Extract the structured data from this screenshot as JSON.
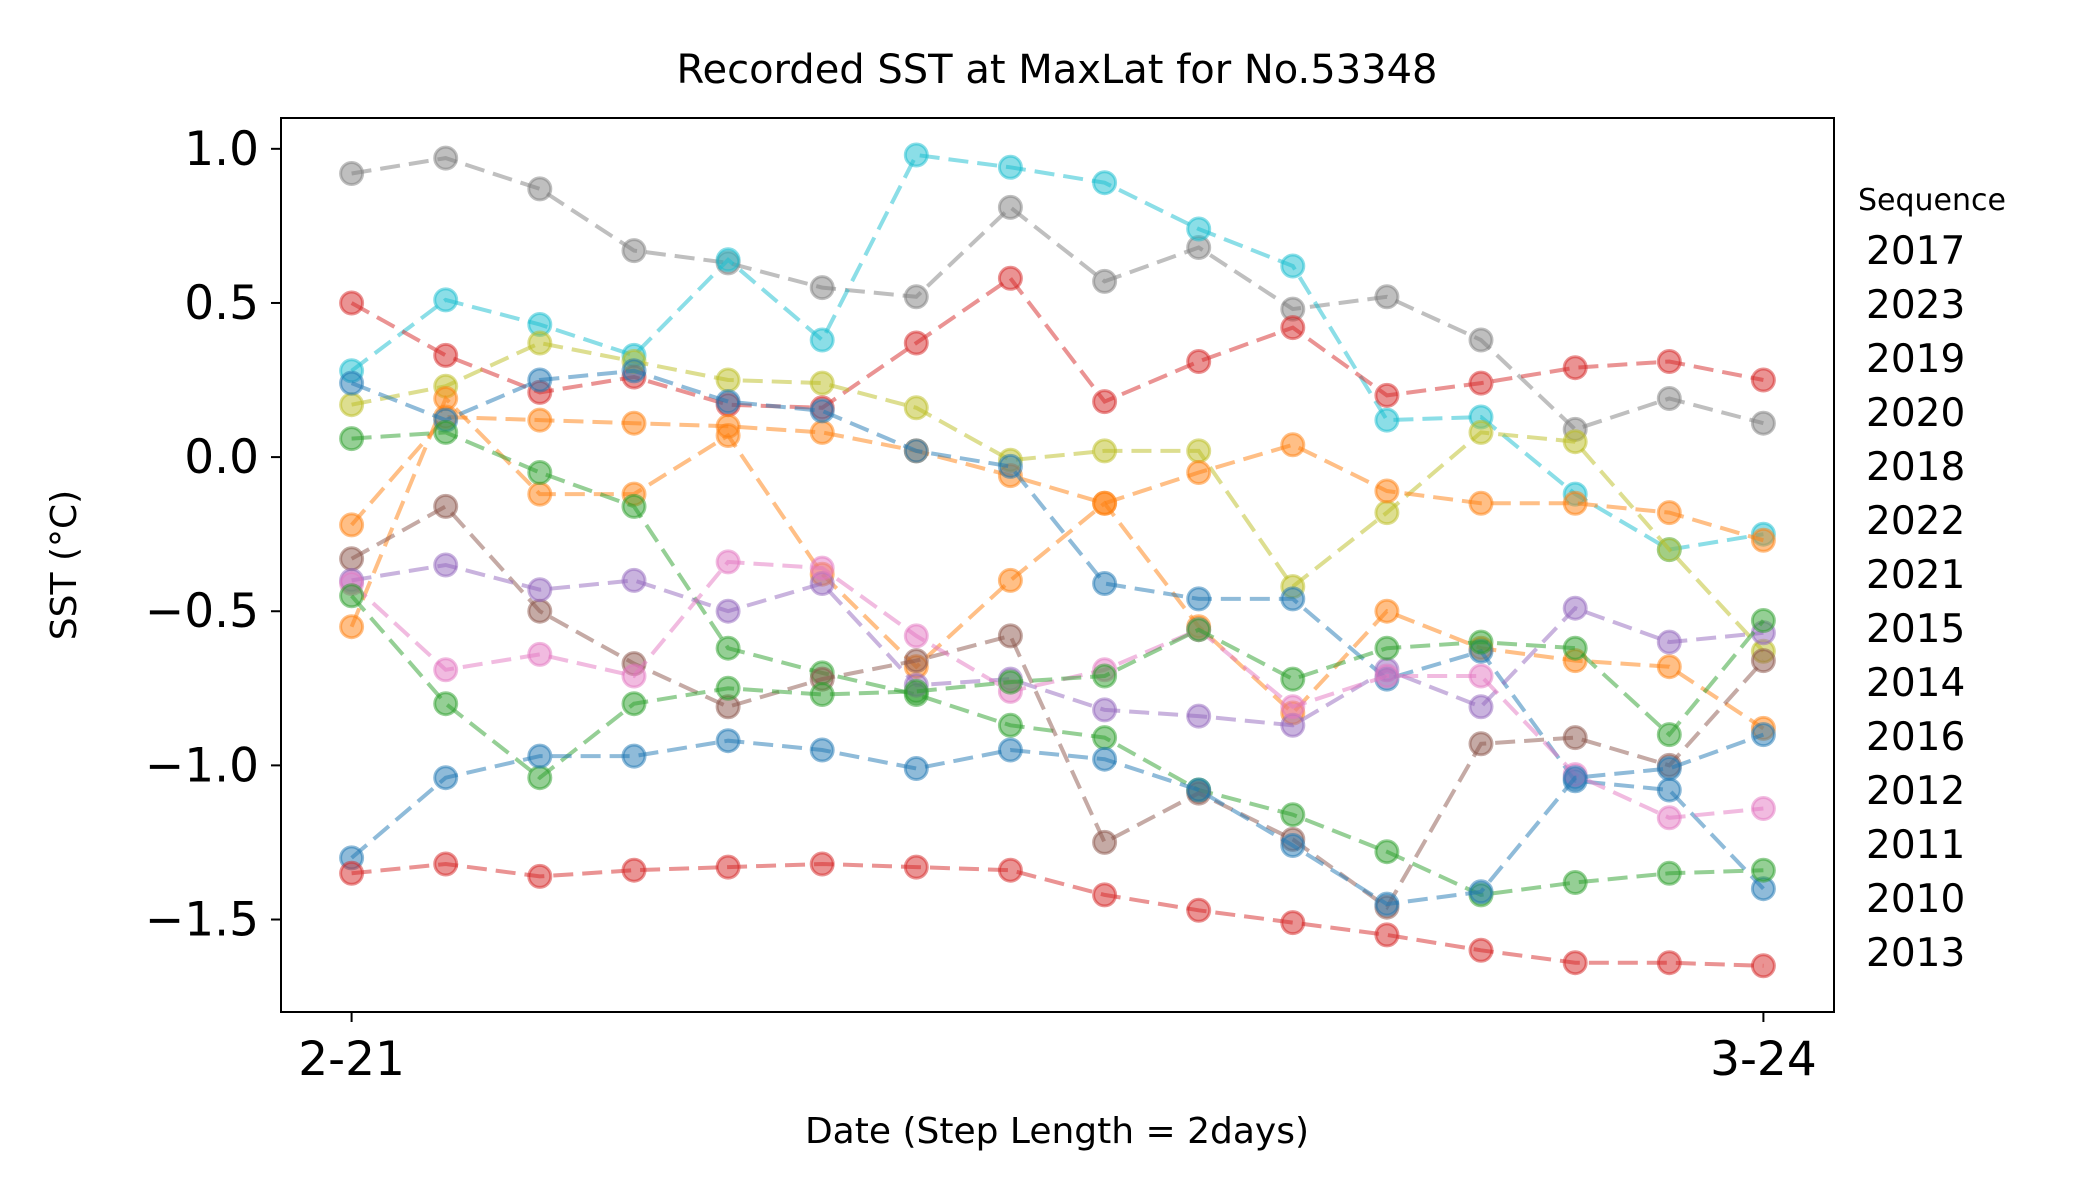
{
  "chart_data": {
    "type": "line",
    "title": "Recorded SST at MaxLat for No.53348",
    "xlabel": "Date (Step Length = 2days)",
    "ylabel": "SST (°C)",
    "x_tick_labels": [
      "2-21",
      "3-24"
    ],
    "x": [
      0,
      1,
      2,
      3,
      4,
      5,
      6,
      7,
      8,
      9,
      10,
      11,
      12,
      13,
      14,
      15
    ],
    "xlim": [
      -0.75,
      15.75
    ],
    "ylim": [
      -1.8,
      1.1
    ],
    "y_ticks": [
      -1.5,
      -1.0,
      -0.5,
      0.0,
      0.5,
      1.0
    ],
    "y_tick_labels": [
      "−1.5",
      "−1.0",
      "−0.5",
      "0.0",
      "0.5",
      "1.0"
    ],
    "grid": false,
    "line_style": "dashed",
    "marker": "circle",
    "legend": {
      "title": "Sequence",
      "placement": "right"
    },
    "series": [
      {
        "name": "2017",
        "color": "#7f7f7f",
        "values": [
          0.92,
          0.97,
          0.87,
          0.67,
          0.63,
          0.55,
          0.52,
          0.81,
          0.57,
          0.68,
          0.48,
          0.52,
          0.38,
          0.09,
          0.19,
          0.11
        ]
      },
      {
        "name": "2023",
        "color": "#17becf",
        "values": [
          0.28,
          0.51,
          0.43,
          0.33,
          0.64,
          0.38,
          0.98,
          0.94,
          0.89,
          0.74,
          0.62,
          0.12,
          0.13,
          -0.12,
          -0.3,
          -0.25
        ]
      },
      {
        "name": "2019",
        "color": "#d62728",
        "values": [
          0.5,
          0.33,
          0.21,
          0.26,
          0.17,
          0.16,
          0.37,
          0.58,
          0.18,
          0.31,
          0.42,
          0.2,
          0.24,
          0.29,
          0.31,
          0.25
        ]
      },
      {
        "name": "2020",
        "color": "#bcbd22",
        "values": [
          0.17,
          0.23,
          0.37,
          0.31,
          0.25,
          0.24,
          0.16,
          -0.01,
          0.02,
          0.02,
          -0.42,
          -0.18,
          0.08,
          0.05,
          -0.3,
          -0.63
        ]
      },
      {
        "name": "2018",
        "color": "#ff7f0e",
        "values": [
          -0.22,
          0.13,
          0.12,
          0.11,
          0.1,
          0.08,
          0.02,
          -0.06,
          -0.15,
          -0.05,
          0.04,
          -0.11,
          -0.15,
          -0.15,
          -0.18,
          -0.27
        ]
      },
      {
        "name": "2022",
        "color": "#ff7f0e",
        "values": [
          -0.55,
          0.19,
          -0.12,
          -0.12,
          0.07,
          -0.38,
          -0.68,
          -0.4,
          -0.15,
          -0.55,
          -0.83,
          -0.5,
          -0.62,
          -0.66,
          -0.68,
          -0.88
        ]
      },
      {
        "name": "2021",
        "color": "#1f77b4",
        "values": [
          0.24,
          0.12,
          0.25,
          0.28,
          0.18,
          0.15,
          0.02,
          -0.03,
          -0.41,
          -0.46,
          -0.46,
          -0.72,
          -0.63,
          -1.05,
          -1.08,
          -1.4
        ]
      },
      {
        "name": "2015",
        "color": "#2ca02c",
        "values": [
          0.06,
          0.08,
          -0.05,
          -0.16,
          -0.62,
          -0.7,
          -0.77,
          -0.87,
          -0.91,
          -1.08,
          -1.16,
          -1.28,
          -1.42,
          -1.38,
          -1.35,
          -1.34
        ]
      },
      {
        "name": "2014",
        "color": "#8c564b",
        "values": [
          -0.33,
          -0.16,
          -0.5,
          -0.67,
          -0.81,
          -0.72,
          -0.66,
          -0.58,
          -1.25,
          -1.09,
          -1.24,
          -1.46,
          -0.93,
          -0.91,
          -1.0,
          -0.66
        ]
      },
      {
        "name": "2016",
        "color": "#9467bd",
        "values": [
          -0.4,
          -0.35,
          -0.43,
          -0.4,
          -0.5,
          -0.41,
          -0.74,
          -0.72,
          -0.82,
          -0.84,
          -0.87,
          -0.69,
          -0.81,
          -0.49,
          -0.6,
          -0.57
        ]
      },
      {
        "name": "2012",
        "color": "#e377c2",
        "values": [
          -0.41,
          -0.69,
          -0.64,
          -0.71,
          -0.34,
          -0.36,
          -0.58,
          -0.76,
          -0.69,
          -0.56,
          -0.81,
          -0.71,
          -0.71,
          -1.03,
          -1.17,
          -1.14
        ]
      },
      {
        "name": "2011",
        "color": "#2ca02c",
        "values": [
          -0.45,
          -0.8,
          -1.04,
          -0.8,
          -0.75,
          -0.77,
          -0.76,
          -0.73,
          -0.71,
          -0.56,
          -0.72,
          -0.62,
          -0.6,
          -0.62,
          -0.9,
          -0.53
        ]
      },
      {
        "name": "2010",
        "color": "#1f77b4",
        "values": [
          -1.3,
          -1.04,
          -0.97,
          -0.97,
          -0.92,
          -0.95,
          -1.01,
          -0.95,
          -0.98,
          -1.08,
          -1.26,
          -1.45,
          -1.41,
          -1.04,
          -1.01,
          -0.9
        ]
      },
      {
        "name": "2013",
        "color": "#d62728",
        "values": [
          -1.35,
          -1.32,
          -1.36,
          -1.34,
          -1.33,
          -1.32,
          -1.33,
          -1.34,
          -1.42,
          -1.47,
          -1.51,
          -1.55,
          -1.6,
          -1.64,
          -1.64,
          -1.65
        ]
      }
    ]
  }
}
